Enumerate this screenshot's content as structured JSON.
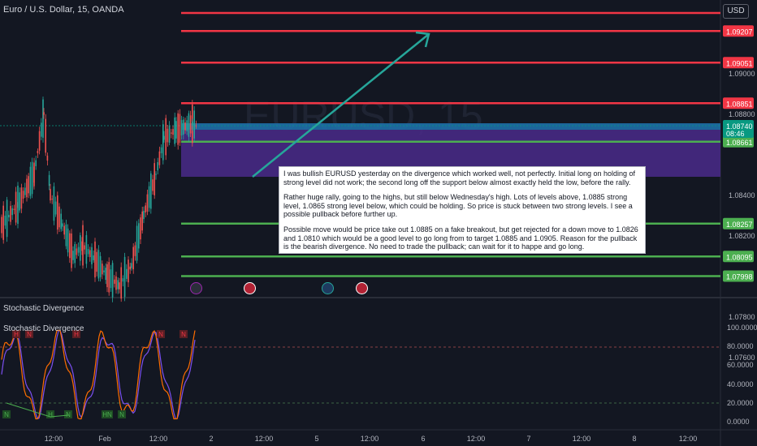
{
  "header": {
    "symbol_title": "Euro / U.S. Dollar, 15, OANDA",
    "currency_button": "USD"
  },
  "watermark": "EURUSD, 15",
  "price_axis": {
    "ticks": [
      {
        "value": 1.09,
        "label": "1.09000"
      },
      {
        "value": 1.088,
        "label": "1.08800"
      },
      {
        "value": 1.084,
        "label": "1.08400"
      },
      {
        "value": 1.082,
        "label": "1.08200"
      },
      {
        "value": 1.078,
        "label": "1.07800"
      },
      {
        "value": 1.076,
        "label": "1.07600"
      }
    ],
    "level_labels": [
      {
        "value": 1.09207,
        "label": "1.09207",
        "color": "#f23645"
      },
      {
        "value": 1.09051,
        "label": "1.09051",
        "color": "#f23645"
      },
      {
        "value": 1.08851,
        "label": "1.08851",
        "color": "#f23645"
      },
      {
        "value": 1.08661,
        "label": "1.08661",
        "color": "#4caf50"
      },
      {
        "value": 1.08257,
        "label": "1.08257",
        "color": "#4caf50"
      },
      {
        "value": 1.08095,
        "label": "1.08095",
        "color": "#4caf50"
      },
      {
        "value": 1.07998,
        "label": "1.07998",
        "color": "#4caf50"
      }
    ],
    "current_price": {
      "value": 1.0874,
      "label": "1.08740",
      "countdown": "08:46",
      "color": "#089981"
    }
  },
  "time_axis": {
    "labels": [
      "12:00",
      "Feb",
      "12:00",
      "2",
      "12:00",
      "5",
      "12:00",
      "6",
      "12:00",
      "7",
      "12:00",
      "8",
      "12:00"
    ]
  },
  "indicator": {
    "pane_title": "Stochastic Divergence",
    "legend_title": "Stochastic Divergence",
    "axis_labels": [
      "100.0000",
      "80.0000",
      "60.0000",
      "40.0000",
      "20.0000",
      "0.0000"
    ],
    "markers_high": [
      "H",
      "N",
      "H",
      "N",
      "N"
    ],
    "markers_low": [
      "N",
      "H",
      "N",
      "HN",
      "N"
    ]
  },
  "annotation": {
    "paragraph1": "I was bullish EURUSD yesterday on the divergence which worked well, not perfectly. Initial long on holding of strong level did not work; the second long off the support below almost exactly held the low, before the rally.",
    "paragraph2": "Rather huge rally, going to the highs, but still below Wednesday's high. Lots of levels above, 1.0885 strong level, 1.0865 strong level below, which could be holding. So price is stuck between two strong levels. I see a possible pullback before further up.",
    "paragraph3": "Possible move would be price take out 1.0885 on a fake breakout, but get rejected for a down move to 1.0826 and 1.0810 which would be a good level to go long from to target 1.0885 and 1.0905.  Reason for the pullback is the bearish divergence. No need to trade the pullback; can wait for it to happe and go long."
  },
  "colors": {
    "background": "#131722",
    "resistance": "#f23645",
    "support": "#4caf50",
    "zone": "#5b2c9e",
    "arrow": "#26a69a",
    "up_candle": "#26a69a",
    "down_candle": "#ef5350",
    "stoch_line": "#ff6d00",
    "stoch_signal": "#7b4ff0"
  }
}
